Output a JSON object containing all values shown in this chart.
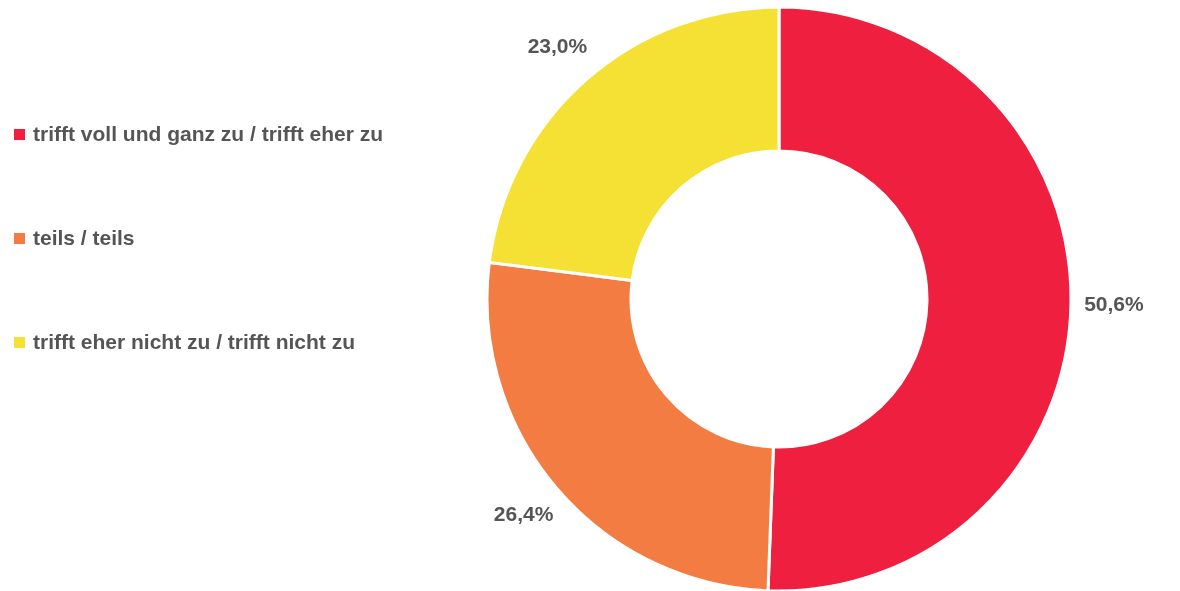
{
  "chart_data": {
    "type": "donut",
    "categories": [
      "trifft voll und ganz zu / trifft eher zu",
      "teils / teils",
      "trifft eher nicht zu / trifft nicht zu"
    ],
    "values": [
      50.6,
      26.4,
      23.0
    ],
    "value_labels": [
      "50,6%",
      "26,4%",
      "23,0%"
    ],
    "colors": [
      "#ee1f3f",
      "#f27c41",
      "#f5e034"
    ],
    "legend": "left"
  }
}
